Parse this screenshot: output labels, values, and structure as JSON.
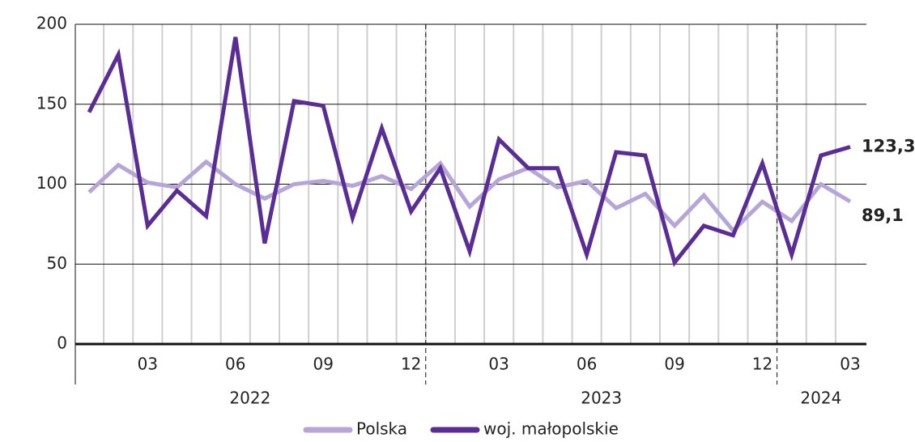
{
  "chart_data": {
    "type": "line",
    "categories": [
      null,
      null,
      "03",
      null,
      null,
      "06",
      null,
      null,
      "09",
      null,
      null,
      "12",
      null,
      null,
      "03",
      null,
      null,
      "06",
      null,
      null,
      "09",
      null,
      null,
      "12",
      null,
      null,
      "03"
    ],
    "x_groups": [
      {
        "label": "2022",
        "count": 12
      },
      {
        "label": "2023",
        "count": 12
      },
      {
        "label": "2024",
        "count": 3
      }
    ],
    "series": [
      {
        "name": "Polska",
        "color": "#b5a5d8",
        "values": [
          95,
          112,
          101,
          98,
          114,
          100,
          91,
          100,
          102,
          99,
          105,
          97,
          113,
          86,
          103,
          110,
          98,
          102,
          85,
          94,
          74,
          93,
          71,
          89,
          77,
          100,
          89.1
        ],
        "value_labels": [
          null,
          null,
          null,
          null,
          null,
          null,
          null,
          null,
          null,
          null,
          null,
          null,
          null,
          null,
          null,
          null,
          null,
          null,
          null,
          null,
          null,
          null,
          null,
          null,
          null,
          null,
          "89,1"
        ]
      },
      {
        "name": "woj. małopolskie",
        "color": "#5a2d96",
        "values": [
          145,
          181,
          74,
          96,
          80,
          192,
          63,
          152,
          149,
          79,
          135,
          83,
          110,
          58,
          128,
          110,
          110,
          56,
          120,
          118,
          51,
          74,
          68,
          113,
          56,
          118,
          123.3
        ],
        "value_labels": [
          null,
          null,
          null,
          null,
          null,
          null,
          null,
          null,
          null,
          null,
          null,
          null,
          null,
          null,
          null,
          null,
          null,
          null,
          null,
          null,
          null,
          null,
          null,
          null,
          null,
          null,
          "123,3"
        ]
      }
    ],
    "ylim": [
      0,
      200
    ],
    "yticks": [
      0,
      50,
      100,
      150,
      200
    ],
    "grid": true,
    "legend": "bottom"
  }
}
